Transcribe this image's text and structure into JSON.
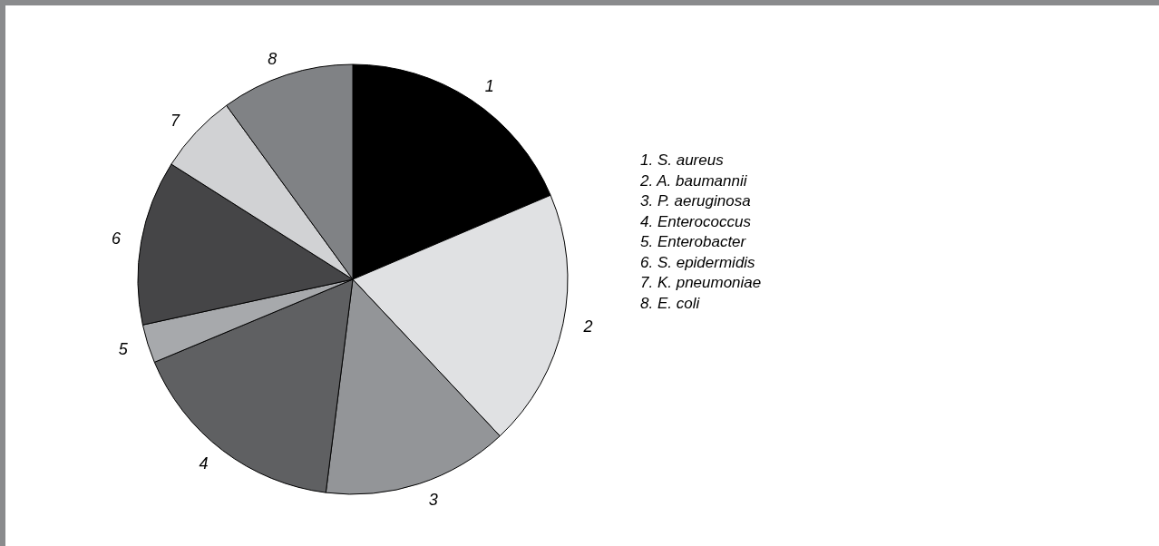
{
  "chart_data": {
    "type": "pie",
    "categories": [
      "1",
      "2",
      "3",
      "4",
      "5",
      "6",
      "7",
      "8"
    ],
    "values": [
      18.6,
      19.4,
      14,
      16.7,
      2.9,
      12.4,
      6,
      10
    ],
    "colors": [
      "#000000",
      "#e0e1e3",
      "#939598",
      "#5f6062",
      "#a7a9ac",
      "#454547",
      "#d1d2d4",
      "#808285"
    ],
    "legend": false,
    "annotations": [
      "1. S. aureus",
      "2. A. baumannii",
      "3. P. aeruginosa",
      "4. Enterococcus",
      "5. Enterobacter",
      "6. S. epidermidis",
      "7. K. pneumoniae",
      "8. E. coli"
    ]
  }
}
